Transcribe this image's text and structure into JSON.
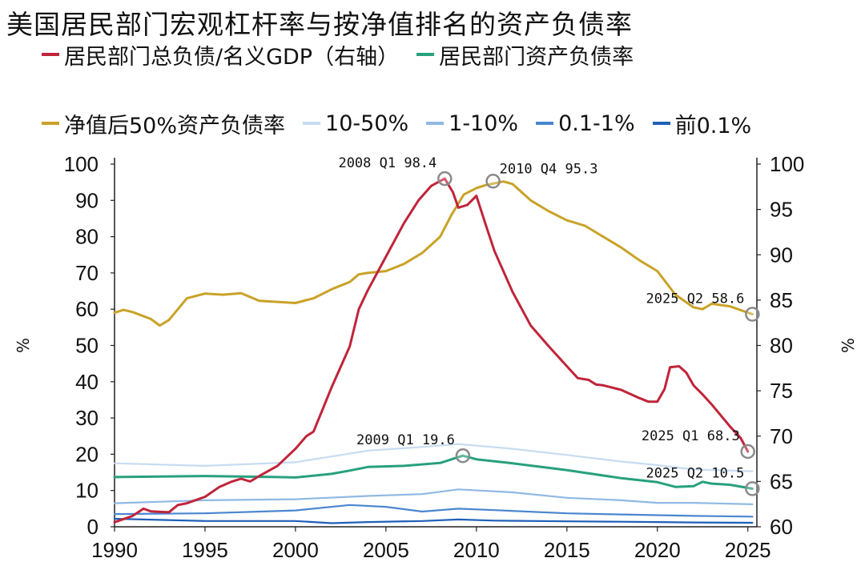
{
  "chart_data": {
    "type": "line",
    "title": "美国居民部门宏观杠杆率与按净值排名的资产负债率",
    "ylabel_left": "%",
    "ylabel_right": "%",
    "ylim_left": [
      0,
      100
    ],
    "ylim_right": [
      60,
      100
    ],
    "xlim": [
      1990,
      2025.5
    ],
    "yticks_left": [
      "0",
      "10",
      "20",
      "30",
      "40",
      "50",
      "60",
      "70",
      "80",
      "90",
      "100"
    ],
    "yticks_right": [
      "60",
      "65",
      "70",
      "75",
      "80",
      "85",
      "90",
      "95",
      "100"
    ],
    "xticks": [
      "1990",
      "1995",
      "2000",
      "2005",
      "2010",
      "2015",
      "2020",
      "2025"
    ],
    "series": [
      {
        "name": "居民部门总负债/名义GDP（右轴）",
        "axis": "right",
        "color": "#c0243a",
        "points": [
          [
            1990,
            60.5
          ],
          [
            1991,
            61.2
          ],
          [
            1991.6,
            62.0
          ],
          [
            1992,
            61.7
          ],
          [
            1993,
            61.6
          ],
          [
            1993.5,
            62.4
          ],
          [
            1994,
            62.6
          ],
          [
            1995,
            63.3
          ],
          [
            1995.8,
            64.4
          ],
          [
            1996.5,
            65.0
          ],
          [
            1997,
            65.3
          ],
          [
            1997.5,
            65.0
          ],
          [
            1998,
            65.6
          ],
          [
            1999,
            66.7
          ],
          [
            2000,
            68.6
          ],
          [
            2000.6,
            70.0
          ],
          [
            2001,
            70.5
          ],
          [
            2002,
            75.4
          ],
          [
            2003,
            79.9
          ],
          [
            2003.5,
            84.0
          ],
          [
            2004,
            86.1
          ],
          [
            2005,
            89.8
          ],
          [
            2006,
            93.5
          ],
          [
            2006.8,
            96.0
          ],
          [
            2007.5,
            97.6
          ],
          [
            2008.25,
            98.4
          ],
          [
            2008.7,
            96.9
          ],
          [
            2009,
            95.2
          ],
          [
            2009.5,
            95.5
          ],
          [
            2010,
            96.5
          ],
          [
            2010.5,
            93.4
          ],
          [
            2011,
            90.4
          ],
          [
            2012,
            85.9
          ],
          [
            2013,
            82.2
          ],
          [
            2014,
            79.9
          ],
          [
            2015,
            77.7
          ],
          [
            2015.6,
            76.4
          ],
          [
            2016.2,
            76.2
          ],
          [
            2016.6,
            75.7
          ],
          [
            2017,
            75.6
          ],
          [
            2018,
            75.1
          ],
          [
            2019,
            74.2
          ],
          [
            2019.5,
            73.8
          ],
          [
            2020,
            73.8
          ],
          [
            2020.4,
            75.2
          ],
          [
            2020.7,
            77.6
          ],
          [
            2021.2,
            77.7
          ],
          [
            2021.6,
            77.0
          ],
          [
            2022,
            75.6
          ],
          [
            2022.5,
            74.6
          ],
          [
            2023,
            73.5
          ],
          [
            2023.5,
            72.3
          ],
          [
            2024,
            71.1
          ],
          [
            2024.6,
            69.8
          ],
          [
            2025,
            68.3
          ]
        ]
      },
      {
        "name": "居民部门资产负债率",
        "axis": "left",
        "color": "#27a07e",
        "points": [
          [
            1990,
            13.7
          ],
          [
            1995,
            14.0
          ],
          [
            1999,
            13.7
          ],
          [
            2000,
            13.6
          ],
          [
            2002,
            14.6
          ],
          [
            2003,
            15.5
          ],
          [
            2004,
            16.5
          ],
          [
            2006,
            16.8
          ],
          [
            2008,
            17.6
          ],
          [
            2009.25,
            19.6
          ],
          [
            2010,
            18.6
          ],
          [
            2012,
            17.5
          ],
          [
            2015,
            15.6
          ],
          [
            2018,
            13.4
          ],
          [
            2020,
            12.3
          ],
          [
            2021,
            11.0
          ],
          [
            2022,
            11.2
          ],
          [
            2022.5,
            12.4
          ],
          [
            2023,
            11.9
          ],
          [
            2024,
            11.6
          ],
          [
            2025.25,
            10.5
          ]
        ]
      },
      {
        "name": "净值后50%资产负债率",
        "axis": "left",
        "color": "#c9a227",
        "points": [
          [
            1990,
            59.0
          ],
          [
            1990.5,
            59.8
          ],
          [
            1991,
            59.2
          ],
          [
            1992,
            57.3
          ],
          [
            1992.5,
            55.5
          ],
          [
            1993,
            57.0
          ],
          [
            1994,
            63.0
          ],
          [
            1995,
            64.3
          ],
          [
            1996,
            64.0
          ],
          [
            1997,
            64.4
          ],
          [
            1998,
            62.3
          ],
          [
            1999,
            62.0
          ],
          [
            2000,
            61.7
          ],
          [
            2001,
            63.0
          ],
          [
            2002,
            65.5
          ],
          [
            2003,
            67.5
          ],
          [
            2003.5,
            69.6
          ],
          [
            2004,
            70.0
          ],
          [
            2005,
            70.5
          ],
          [
            2006,
            72.5
          ],
          [
            2007,
            75.5
          ],
          [
            2008,
            80.0
          ],
          [
            2008.6,
            85.8
          ],
          [
            2009.3,
            91.6
          ],
          [
            2010,
            93.4
          ],
          [
            2010.5,
            94.2
          ],
          [
            2011.5,
            95.2
          ],
          [
            2012,
            94.5
          ],
          [
            2013,
            90.0
          ],
          [
            2014,
            87.0
          ],
          [
            2015,
            84.5
          ],
          [
            2016,
            83.0
          ],
          [
            2017,
            80.0
          ],
          [
            2018,
            77.0
          ],
          [
            2019,
            73.5
          ],
          [
            2020,
            70.5
          ],
          [
            2021,
            64.0
          ],
          [
            2022,
            60.5
          ],
          [
            2022.5,
            60.0
          ],
          [
            2023,
            61.5
          ],
          [
            2024,
            60.8
          ],
          [
            2025.25,
            58.6
          ]
        ]
      },
      {
        "name": "10-50%",
        "axis": "left",
        "color": "#c6dcf2",
        "points": [
          [
            1990,
            17.5
          ],
          [
            1995,
            16.8
          ],
          [
            2000,
            17.8
          ],
          [
            2004,
            21.0
          ],
          [
            2007,
            22.0
          ],
          [
            2009,
            22.8
          ],
          [
            2012,
            21.5
          ],
          [
            2015,
            19.8
          ],
          [
            2018,
            18.0
          ],
          [
            2020,
            17.0
          ],
          [
            2022,
            15.8
          ],
          [
            2025.25,
            15.3
          ]
        ]
      },
      {
        "name": "1-10%",
        "axis": "left",
        "color": "#8fb9e3",
        "points": [
          [
            1990,
            6.5
          ],
          [
            1995,
            7.3
          ],
          [
            2000,
            7.6
          ],
          [
            2004,
            8.5
          ],
          [
            2007,
            9.0
          ],
          [
            2009,
            10.3
          ],
          [
            2012,
            9.5
          ],
          [
            2015,
            8.0
          ],
          [
            2018,
            7.3
          ],
          [
            2020,
            6.6
          ],
          [
            2022,
            6.6
          ],
          [
            2025.25,
            6.2
          ]
        ]
      },
      {
        "name": "0.1-1%",
        "axis": "left",
        "color": "#4a86d0",
        "points": [
          [
            1990,
            3.5
          ],
          [
            1995,
            3.7
          ],
          [
            2000,
            4.5
          ],
          [
            2003,
            6.0
          ],
          [
            2005,
            5.5
          ],
          [
            2007,
            4.2
          ],
          [
            2009,
            5.0
          ],
          [
            2011,
            4.6
          ],
          [
            2015,
            3.7
          ],
          [
            2018,
            3.4
          ],
          [
            2020,
            3.2
          ],
          [
            2022,
            3.0
          ],
          [
            2025.25,
            2.8
          ]
        ]
      },
      {
        "name": "前0.1%",
        "axis": "left",
        "color": "#1f5fb8",
        "points": [
          [
            1990,
            2.2
          ],
          [
            1995,
            1.6
          ],
          [
            2000,
            1.6
          ],
          [
            2002,
            1.0
          ],
          [
            2004,
            1.3
          ],
          [
            2007,
            1.6
          ],
          [
            2009,
            2.0
          ],
          [
            2011,
            1.7
          ],
          [
            2015,
            1.5
          ],
          [
            2018,
            1.4
          ],
          [
            2020,
            1.3
          ],
          [
            2022,
            1.2
          ],
          [
            2025.25,
            1.1
          ]
        ]
      }
    ],
    "annotations": [
      {
        "label": "2008 Q1 98.4",
        "x": 2008.25,
        "y": 98.4,
        "axis": "right",
        "series": "居民部门总负债/名义GDP（右轴）",
        "placement": "upper-left"
      },
      {
        "label": "2010 Q4 95.3",
        "x": 2010.92,
        "y": 95.3,
        "axis": "left",
        "series": "净值后50%资产负债率",
        "placement": "upper-right"
      },
      {
        "label": "2025 Q2 58.6",
        "x": 2025.25,
        "y": 58.6,
        "axis": "left",
        "series": "净值后50%资产负债率",
        "placement": "upper-left"
      },
      {
        "label": "2025 Q1 68.3",
        "x": 2025.0,
        "y": 68.3,
        "axis": "right",
        "series": "居民部门总负债/名义GDP（右轴）",
        "placement": "upper-left"
      },
      {
        "label": "2009 Q1 19.6",
        "x": 2009.25,
        "y": 19.6,
        "axis": "left",
        "series": "居民部门资产负债率",
        "placement": "upper-left"
      },
      {
        "label": "2025 Q2 10.5",
        "x": 2025.25,
        "y": 10.5,
        "axis": "left",
        "series": "居民部门资产负债率",
        "placement": "upper-left"
      }
    ],
    "legend": [
      {
        "label": "居民部门总负债/名义GDP（右轴）",
        "color": "#c0243a"
      },
      {
        "label": "居民部门资产负债率",
        "color": "#27a07e"
      },
      {
        "label": "净值后50%资产负债率",
        "color": "#c9a227"
      },
      {
        "label": "10-50%",
        "color": "#c6dcf2"
      },
      {
        "label": "1-10%",
        "color": "#8fb9e3"
      },
      {
        "label": "0.1-1%",
        "color": "#4a86d0"
      },
      {
        "label": "前0.1%",
        "color": "#1f5fb8"
      }
    ],
    "legend_rows": [
      [
        0,
        1
      ],
      [
        2,
        3,
        4,
        5,
        6
      ]
    ],
    "legend_placement": "top",
    "grid": false
  }
}
